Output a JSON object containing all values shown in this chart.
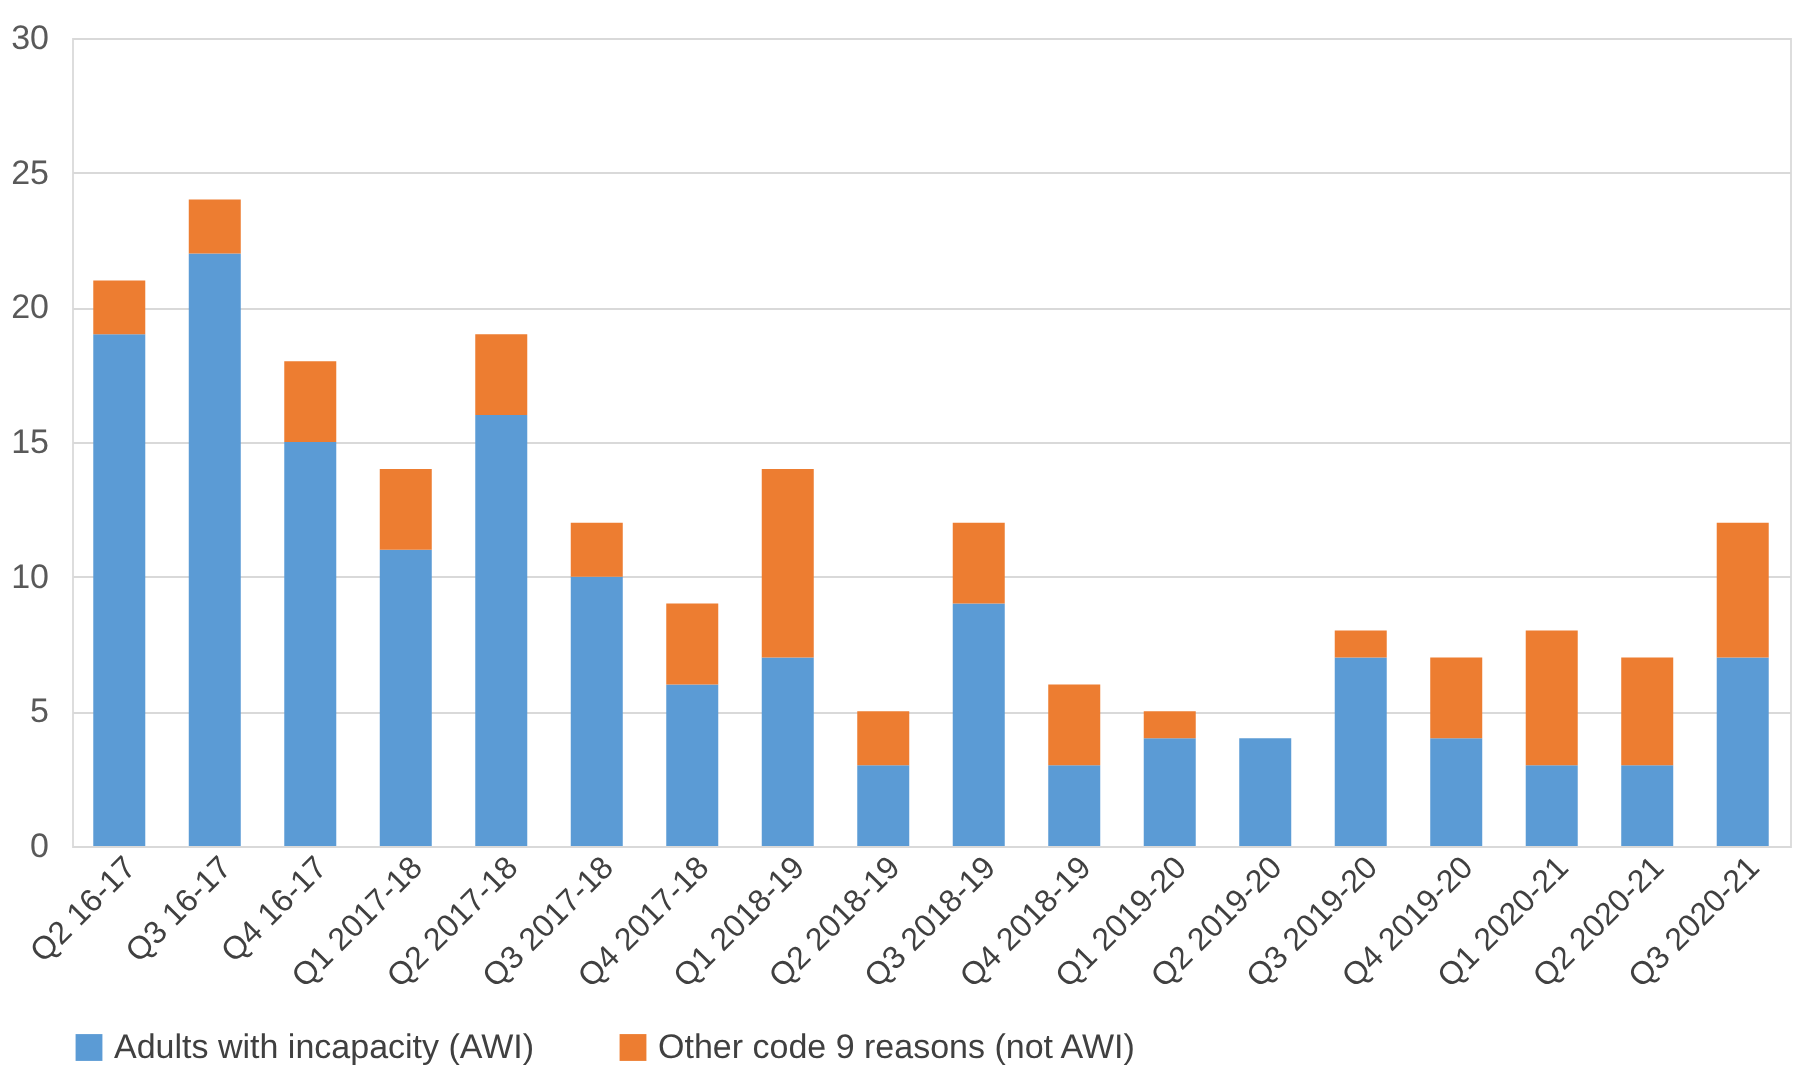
{
  "chart_data": {
    "type": "bar",
    "stacked": true,
    "categories": [
      "Q2 16-17",
      "Q3 16-17",
      "Q4 16-17",
      "Q1 2017-18",
      "Q2 2017-18",
      "Q3 2017-18",
      "Q4 2017-18",
      "Q1 2018-19",
      "Q2 2018-19",
      "Q3 2018-19",
      "Q4 2018-19",
      "Q1 2019-20",
      "Q2 2019-20",
      "Q3 2019-20",
      "Q4 2019-20",
      "Q1 2020-21",
      "Q2 2020-21",
      "Q3 2020-21"
    ],
    "series": [
      {
        "name": "Adults with incapacity (AWI)",
        "color": "#5b9bd5",
        "values": [
          19,
          22,
          15,
          11,
          16,
          10,
          6,
          7,
          3,
          9,
          3,
          4,
          4,
          7,
          4,
          3,
          3,
          7
        ]
      },
      {
        "name": "Other code 9 reasons (not AWI)",
        "color": "#ed7d31",
        "values": [
          2,
          2,
          3,
          3,
          3,
          2,
          3,
          7,
          2,
          3,
          3,
          1,
          0,
          1,
          3,
          5,
          4,
          5
        ]
      }
    ],
    "ylim": [
      0,
      30
    ],
    "yticks": [
      0,
      5,
      10,
      15,
      20,
      25,
      30
    ],
    "grid": "y",
    "legend": "bottom"
  }
}
